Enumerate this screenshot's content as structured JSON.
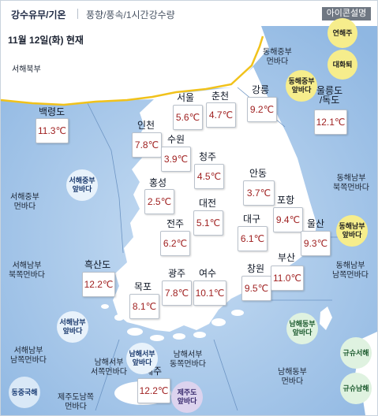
{
  "header": {
    "tab_main": "강수유무/기온",
    "tab_sub": "풍향/풍속/1시간강수량",
    "icon_legend_button": "아이콘설명"
  },
  "map": {
    "date_label": "11월 12일(화) 현재",
    "cities": [
      {
        "id": "seoul",
        "name": "서울",
        "temp": "5.6℃"
      },
      {
        "id": "chuncheon",
        "name": "춘천",
        "temp": "4.7℃"
      },
      {
        "id": "gangneung",
        "name": "강릉",
        "temp": "9.2℃"
      },
      {
        "id": "ulleungdo",
        "name": "울릉도\n/독도",
        "temp": "12.1℃"
      },
      {
        "id": "baengnyeongdo",
        "name": "백령도",
        "temp": "11.3℃"
      },
      {
        "id": "incheon",
        "name": "인천",
        "temp": "7.8℃"
      },
      {
        "id": "suwon",
        "name": "수원",
        "temp": "3.9℃"
      },
      {
        "id": "cheongju",
        "name": "청주",
        "temp": "4.5℃"
      },
      {
        "id": "andong",
        "name": "안동",
        "temp": "3.7℃"
      },
      {
        "id": "hongseong",
        "name": "홍성",
        "temp": "2.5℃"
      },
      {
        "id": "daejeon",
        "name": "대전",
        "temp": "5.1℃"
      },
      {
        "id": "pohang",
        "name": "포항",
        "temp": "9.4℃"
      },
      {
        "id": "jeonju",
        "name": "전주",
        "temp": "6.2℃"
      },
      {
        "id": "daegu",
        "name": "대구",
        "temp": "6.1℃"
      },
      {
        "id": "ulsan",
        "name": "울산",
        "temp": "9.3℃"
      },
      {
        "id": "heuksando",
        "name": "흑산도",
        "temp": "12.2℃"
      },
      {
        "id": "mokpo",
        "name": "목포",
        "temp": "8.1℃"
      },
      {
        "id": "gwangju",
        "name": "광주",
        "temp": "7.8℃"
      },
      {
        "id": "yeosu",
        "name": "여수",
        "temp": "10.1℃"
      },
      {
        "id": "changwon",
        "name": "창원",
        "temp": "9.5℃"
      },
      {
        "id": "busan",
        "name": "부산",
        "temp": "11.0℃"
      },
      {
        "id": "jeju",
        "name": "제주",
        "temp": "12.2℃"
      }
    ],
    "sea_labels": [
      {
        "id": "seohae-bukbu",
        "text": "서해북부"
      },
      {
        "id": "donghae-jungbu-meon",
        "text": "동해중부\n먼바다"
      },
      {
        "id": "seohae-jungbu-meon",
        "text": "서해중부\n먼바다"
      },
      {
        "id": "donghae-nambu-bukjjok-meon",
        "text": "동해남부\n북쪽먼바다"
      },
      {
        "id": "seohae-nambu-bukjjok-meon",
        "text": "서해남부\n북쪽먼바다"
      },
      {
        "id": "donghae-nambu-namjjok-meon",
        "text": "동해남부\n남쪽먼바다"
      },
      {
        "id": "seohae-nambu-namjjok-meon",
        "text": "서해남부\n남쪽먼바다"
      },
      {
        "id": "namhae-seobu-seojjok-meon",
        "text": "남해서부\n서쪽먼바다"
      },
      {
        "id": "namhae-seobu-dongjjok-meon",
        "text": "남해서부\n동쪽먼바다"
      },
      {
        "id": "namhae-dongbu-meon",
        "text": "남해동부\n먼바다"
      },
      {
        "id": "jejudo-namjjok-meon",
        "text": "제주도남쪽\n먼바다"
      }
    ],
    "circle_buttons": [
      {
        "id": "yeonhaeju",
        "text": "연해주",
        "style": "yellow"
      },
      {
        "id": "daehwatoe",
        "text": "대화퇴",
        "style": "yellow"
      },
      {
        "id": "donghae-jungbu-ap",
        "text": "동해중부\n앞바다",
        "style": "yellow"
      },
      {
        "id": "seohae-jungbu-ap",
        "text": "서해중부\n앞바다",
        "style": "white"
      },
      {
        "id": "donghae-nambu-ap",
        "text": "동해남부\n앞바다",
        "style": "yellow"
      },
      {
        "id": "seohae-nambu-ap",
        "text": "서해남부\n앞바다",
        "style": "white"
      },
      {
        "id": "namhae-seobu-ap",
        "text": "남해서부\n앞바다",
        "style": "white"
      },
      {
        "id": "namhae-dongbu-ap",
        "text": "남해동부\n앞바다",
        "style": "green"
      },
      {
        "id": "gyusyu-seohae",
        "text": "규슈서해",
        "style": "green"
      },
      {
        "id": "gyusyu-namhae",
        "text": "규슈남해",
        "style": "green"
      },
      {
        "id": "dongjungukhae",
        "text": "동중국해",
        "style": "blue"
      },
      {
        "id": "jejudo-ap",
        "text": "제주도\n앞바다",
        "style": "purple"
      }
    ],
    "colors": {
      "sea": "#a9c9ea",
      "land": "#ffffff",
      "nk_line": "#f1c21b",
      "temp": "#9e1d1d"
    }
  }
}
